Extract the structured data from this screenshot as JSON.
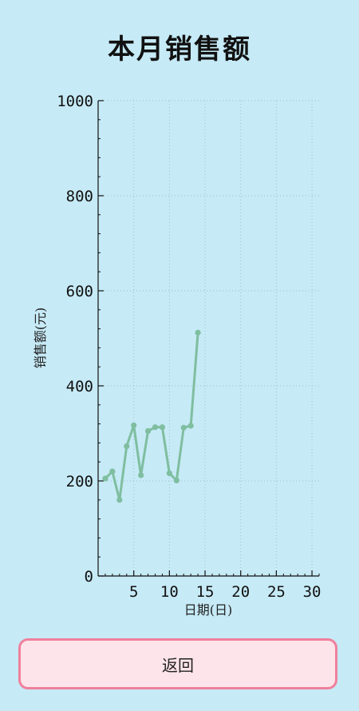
{
  "page": {
    "title": "本月销售额",
    "back_label": "返回"
  },
  "colors": {
    "background": "#c6eaf6",
    "line": "#7fbea0",
    "button_border": "#f0809c",
    "button_bg": "#fde4ea"
  },
  "chart_data": {
    "type": "line",
    "title": "本月销售额",
    "xlabel": "日期(日)",
    "ylabel": "销售额(元)",
    "xlim": [
      0,
      31
    ],
    "ylim": [
      0,
      1000
    ],
    "xticks": [
      5,
      10,
      15,
      20,
      25,
      30
    ],
    "yticks": [
      0,
      200,
      400,
      600,
      800,
      1000
    ],
    "grid": true,
    "series": [
      {
        "name": "销售额",
        "x": [
          1,
          2,
          3,
          4,
          5,
          6,
          7,
          8,
          9,
          10,
          11,
          12,
          13,
          14
        ],
        "values": [
          205,
          220,
          160,
          273,
          317,
          212,
          305,
          313,
          313,
          216,
          201,
          312,
          316,
          512
        ]
      }
    ]
  }
}
